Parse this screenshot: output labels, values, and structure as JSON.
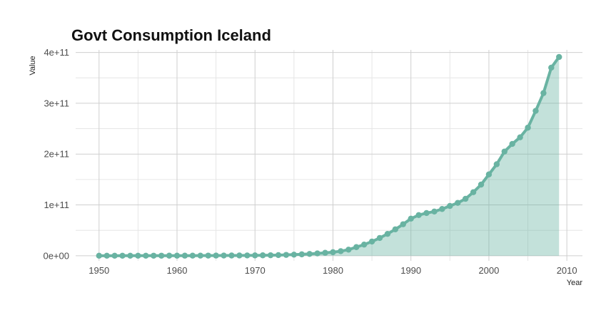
{
  "chart_data": {
    "type": "area",
    "title": "Govt Consumption Iceland",
    "xlabel": "Year",
    "ylabel": "Value",
    "xlim": [
      1947,
      2012
    ],
    "ylim": [
      -10000000000.0,
      405000000000.0
    ],
    "x_ticks": [
      1950,
      1960,
      1970,
      1980,
      1990,
      2000,
      2010
    ],
    "x_tick_labels": [
      "1950",
      "1960",
      "1970",
      "1980",
      "1990",
      "2000",
      "2010"
    ],
    "y_ticks": [
      0,
      100000000000,
      200000000000,
      300000000000,
      400000000000
    ],
    "y_tick_labels": [
      "0e+00",
      "1e+11",
      "2e+11",
      "3e+11",
      "4e+11"
    ],
    "grid": true,
    "colors": {
      "line": "#69b3a2",
      "fill": "#69b3a2"
    },
    "series": [
      {
        "x": [
          1950,
          1951,
          1952,
          1953,
          1954,
          1955,
          1956,
          1957,
          1958,
          1959,
          1960,
          1961,
          1962,
          1963,
          1964,
          1965,
          1966,
          1967,
          1968,
          1969,
          1970,
          1971,
          1972,
          1973,
          1974,
          1975,
          1976,
          1977,
          1978,
          1979,
          1980,
          1981,
          1982,
          1983,
          1984,
          1985,
          1986,
          1987,
          1988,
          1989,
          1990,
          1991,
          1992,
          1993,
          1994,
          1995,
          1996,
          1997,
          1998,
          1999,
          2000,
          2001,
          2002,
          2003,
          2004,
          2005,
          2006,
          2007,
          2008,
          2009
        ],
        "values": [
          50000000,
          60000000,
          70000000,
          80000000,
          90000000,
          100000000,
          110000000,
          120000000,
          140000000,
          160000000,
          180000000,
          200000000,
          230000000,
          270000000,
          320000000,
          380000000,
          440000000,
          500000000,
          560000000,
          630000000,
          700000000,
          850000000,
          1000000000,
          1300000000,
          1700000000,
          2200000000,
          2800000000,
          3600000000,
          4600000000,
          5800000000,
          7000000000,
          9000000000,
          12000000000,
          17000000000,
          22000000000,
          28000000000,
          35000000000,
          43000000000,
          52000000000,
          62000000000,
          73000000000,
          80000000000,
          84000000000,
          87000000000,
          92000000000,
          98000000000,
          104000000000,
          112000000000,
          125000000000,
          140000000000,
          160000000000,
          180000000000,
          205000000000,
          220000000000,
          233000000000,
          252000000000,
          285000000000,
          320000000000,
          370000000000,
          391000000000
        ]
      }
    ]
  }
}
